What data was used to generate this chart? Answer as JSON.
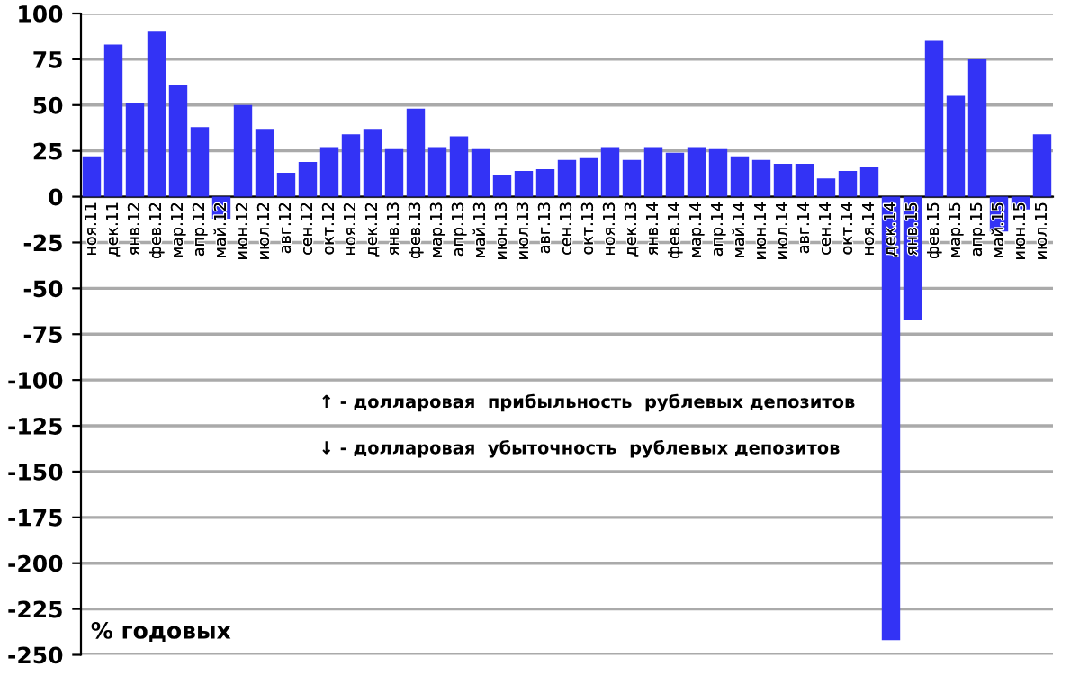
{
  "chart_data": {
    "type": "bar",
    "categories": [
      "ноя.11",
      "дек.11",
      "янв.12",
      "фев.12",
      "мар.12",
      "апр.12",
      "май.12",
      "июн.12",
      "июл.12",
      "авг.12",
      "сен.12",
      "окт.12",
      "ноя.12",
      "дек.12",
      "янв.13",
      "фев.13",
      "мар.13",
      "апр.13",
      "май.13",
      "июн.13",
      "июл.13",
      "авг.13",
      "сен.13",
      "окт.13",
      "ноя.13",
      "дек.13",
      "янв.14",
      "фев.14",
      "мар.14",
      "апр.14",
      "май.14",
      "июн.14",
      "июл.14",
      "авг.14",
      "сен.14",
      "окт.14",
      "ноя.14",
      "дек.14",
      "янв.15",
      "фев.15",
      "мар.15",
      "апр.15",
      "май.15",
      "июн.15",
      "июл.15"
    ],
    "series": [
      {
        "color": "#3333f5",
        "values": [
          22,
          83,
          51,
          90,
          61,
          38,
          -12,
          50,
          37,
          13,
          19,
          27,
          34,
          37,
          26,
          48,
          27,
          33,
          26,
          12,
          14,
          15,
          20,
          21,
          27,
          20,
          27,
          24,
          27,
          26,
          22,
          20,
          18,
          18,
          10,
          14,
          16,
          -242,
          -67,
          85,
          55,
          75,
          -19,
          -7,
          34
        ]
      }
    ],
    "ylim": [
      -250,
      100
    ],
    "yticks": [
      -250,
      -225,
      -200,
      -175,
      -150,
      -125,
      -100,
      -75,
      -50,
      -25,
      0,
      25,
      50,
      75,
      100
    ],
    "grid": "y",
    "legend": false,
    "annotations": [
      "↑ - долларовая  прибыльность  рублевых депозитов",
      "↓ - долларовая  убыточность  рублевых депозитов",
      "% годовых"
    ]
  }
}
